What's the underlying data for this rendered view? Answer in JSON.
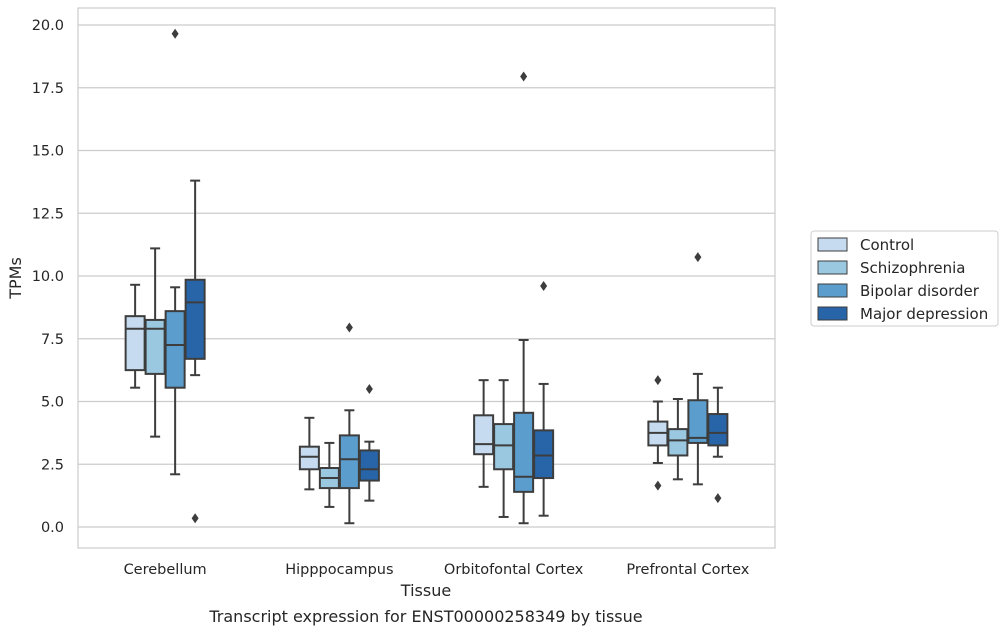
{
  "chart_data": {
    "type": "boxplot",
    "title": "Transcript expression for ENST00000258349 by tissue",
    "xlabel": "Tissue",
    "ylabel": "TPMs",
    "ylim": [
      -0.8,
      20.6
    ],
    "yticks": [
      "0.0",
      "2.5",
      "5.0",
      "7.5",
      "10.0",
      "12.5",
      "15.0",
      "17.5",
      "20.0"
    ],
    "grid": true,
    "legend_position": "right",
    "categories": [
      "Cerebellum",
      "Hipppocampus",
      "Orbitofontal Cortex",
      "Prefrontal Cortex"
    ],
    "series": [
      {
        "name": "Control",
        "color": "#c6dbef",
        "boxes": [
          {
            "whislo": 5.55,
            "q1": 6.25,
            "med": 7.9,
            "q3": 8.4,
            "whishi": 9.65,
            "fliers": []
          },
          {
            "whislo": 1.5,
            "q1": 2.3,
            "med": 2.8,
            "q3": 3.2,
            "whishi": 4.35,
            "fliers": []
          },
          {
            "whislo": 1.6,
            "q1": 2.9,
            "med": 3.3,
            "q3": 4.45,
            "whishi": 5.85,
            "fliers": []
          },
          {
            "whislo": 2.55,
            "q1": 3.25,
            "med": 3.75,
            "q3": 4.2,
            "whishi": 5.0,
            "fliers": [
              5.85,
              1.65
            ]
          }
        ]
      },
      {
        "name": "Schizophrenia",
        "color": "#9ac8e0",
        "boxes": [
          {
            "whislo": 3.6,
            "q1": 6.1,
            "med": 7.9,
            "q3": 8.25,
            "whishi": 11.1,
            "fliers": []
          },
          {
            "whislo": 0.8,
            "q1": 1.55,
            "med": 1.95,
            "q3": 2.35,
            "whishi": 3.35,
            "fliers": []
          },
          {
            "whislo": 0.4,
            "q1": 2.3,
            "med": 3.25,
            "q3": 4.1,
            "whishi": 5.85,
            "fliers": []
          },
          {
            "whislo": 1.9,
            "q1": 2.85,
            "med": 3.45,
            "q3": 3.9,
            "whishi": 5.1,
            "fliers": []
          }
        ]
      },
      {
        "name": "Bipolar disorder",
        "color": "#5b9ecd",
        "boxes": [
          {
            "whislo": 2.1,
            "q1": 5.55,
            "med": 7.25,
            "q3": 8.6,
            "whishi": 9.55,
            "fliers": [
              19.65
            ]
          },
          {
            "whislo": 0.15,
            "q1": 1.55,
            "med": 2.7,
            "q3": 3.65,
            "whishi": 4.65,
            "fliers": [
              7.95
            ]
          },
          {
            "whislo": 0.15,
            "q1": 1.4,
            "med": 2.0,
            "q3": 4.55,
            "whishi": 7.45,
            "fliers": [
              17.95
            ]
          },
          {
            "whislo": 1.7,
            "q1": 3.35,
            "med": 3.55,
            "q3": 5.05,
            "whishi": 6.1,
            "fliers": [
              10.75
            ]
          }
        ]
      },
      {
        "name": "Major depression",
        "color": "#2765a8",
        "boxes": [
          {
            "whislo": 6.05,
            "q1": 6.7,
            "med": 8.95,
            "q3": 9.85,
            "whishi": 13.8,
            "fliers": [
              0.35
            ]
          },
          {
            "whislo": 1.05,
            "q1": 1.85,
            "med": 2.3,
            "q3": 3.05,
            "whishi": 3.4,
            "fliers": [
              5.5
            ]
          },
          {
            "whislo": 0.45,
            "q1": 1.95,
            "med": 2.85,
            "q3": 3.85,
            "whishi": 5.7,
            "fliers": [
              9.6
            ]
          },
          {
            "whislo": 2.8,
            "q1": 3.25,
            "med": 3.75,
            "q3": 4.5,
            "whishi": 5.55,
            "fliers": [
              1.15
            ]
          }
        ]
      }
    ]
  }
}
